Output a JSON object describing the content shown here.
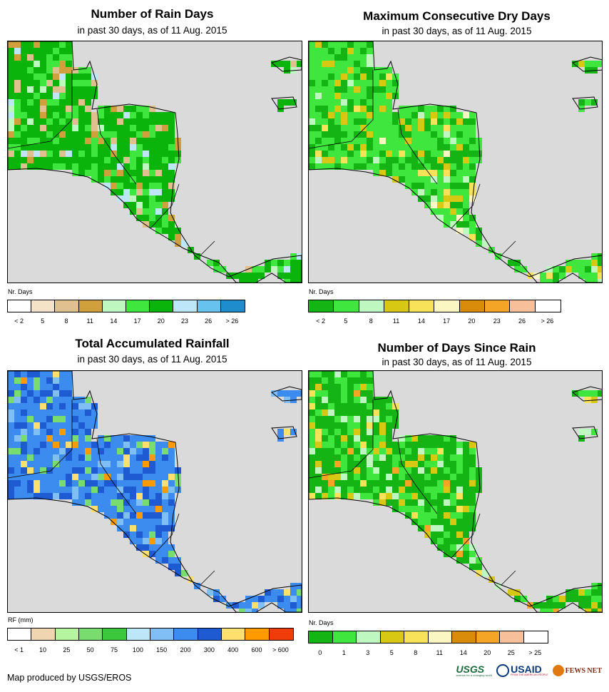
{
  "panels": [
    {
      "title": "Number of Rain Days",
      "subtitle": "in past 30 days, as of 11 Aug. 2015",
      "unit": "Nr. Days",
      "legend": {
        "colors": [
          "#ffffff",
          "#f5e3c8",
          "#dfc08e",
          "#cfa03c",
          "#bff7c1",
          "#3ee63e",
          "#0ab40a",
          "#bde7f8",
          "#68c2ee",
          "#1e8ccd"
        ],
        "labels": [
          "< 2",
          "5",
          "8",
          "11",
          "14",
          "17",
          "20",
          "23",
          "26",
          "> 26"
        ]
      }
    },
    {
      "title": "Maximum Consecutive Dry Days",
      "subtitle": "in past 30 days, as of 11 Aug. 2015",
      "unit": "Nr. Days",
      "legend": {
        "colors": [
          "#14b414",
          "#3ee63e",
          "#bff7c1",
          "#d7c814",
          "#f7e25a",
          "#fbf7c3",
          "#d98c0a",
          "#f5a526",
          "#f7c09a",
          "#ffffff"
        ],
        "labels": [
          "< 2",
          "5",
          "8",
          "11",
          "14",
          "17",
          "20",
          "23",
          "26",
          "> 26"
        ]
      }
    },
    {
      "title": "Total Accumulated Rainfall",
      "subtitle": "in past 30 days, as of 11 Aug. 2015",
      "unit": "RF (mm)",
      "legend": {
        "colors": [
          "#ffffff",
          "#f0d6b0",
          "#b6f5a0",
          "#78dc6e",
          "#3cc83c",
          "#bde7f8",
          "#7fbff5",
          "#3c8cf0",
          "#1e5ad2",
          "#ffe06e",
          "#ff9a00",
          "#f03c0a"
        ],
        "labels": [
          "< 1",
          "10",
          "25",
          "50",
          "75",
          "100",
          "150",
          "200",
          "300",
          "400",
          "600",
          "> 600"
        ]
      }
    },
    {
      "title": "Number of Days Since Rain",
      "subtitle": "in past 30 days, as of 11 Aug. 2015",
      "unit": "Nr. Days",
      "legend": {
        "colors": [
          "#14b414",
          "#3ee63e",
          "#bff7c1",
          "#d7c814",
          "#f7e25a",
          "#fbf7c3",
          "#d98c0a",
          "#f5a526",
          "#f7c09a",
          "#ffffff"
        ],
        "labels": [
          "0",
          "1",
          "3",
          "5",
          "8",
          "11",
          "14",
          "20",
          "25",
          "> 25"
        ]
      }
    }
  ],
  "credit": "Map produced by USGS/EROS",
  "logos": {
    "usgs": "USGS",
    "usgs_tagline": "science for a changing world",
    "usaid": "USAID",
    "usaid_tagline": "FROM THE AMERICAN PEOPLE",
    "fews": "FEWS NET"
  },
  "map_colors": {
    "ocean": "#dadada",
    "panel1": [
      "#0ab40a",
      "#3ee63e",
      "#dfc08e",
      "#cfa03c",
      "#bde7f8",
      "#bff7c1"
    ],
    "panel2": [
      "#3ee63e",
      "#14b414",
      "#d7c814",
      "#f7e25a",
      "#bff7c1",
      "#fbf7c3"
    ],
    "panel3": [
      "#3c8cf0",
      "#1e5ad2",
      "#7fbff5",
      "#78dc6e",
      "#ffe06e",
      "#ff9a00"
    ],
    "panel4": [
      "#14b414",
      "#3ee63e",
      "#d7c814",
      "#bff7c1",
      "#f7e25a",
      "#f5a526"
    ]
  }
}
